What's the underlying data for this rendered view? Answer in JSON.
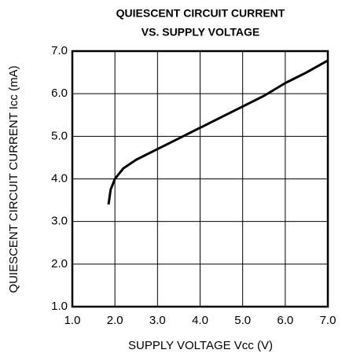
{
  "chart_data": {
    "type": "line",
    "title": [
      "QUIESCENT CIRCUIT CURRENT",
      "VS. SUPPLY VOLTAGE"
    ],
    "xlabel": "SUPPLY VOLTAGE Vcc (V)",
    "ylabel": "QUIESCENT CIRCUIT CURRENT Icc (mA)",
    "x": [
      1.85,
      1.9,
      2.0,
      2.2,
      2.5,
      3.0,
      3.5,
      4.0,
      4.5,
      5.0,
      5.5,
      6.0,
      6.5,
      7.0
    ],
    "series": [
      {
        "color": "#000000",
        "values": [
          3.4,
          3.75,
          4.0,
          4.25,
          4.45,
          4.7,
          4.95,
          5.2,
          5.45,
          5.7,
          5.95,
          6.25,
          6.5,
          6.78
        ]
      }
    ],
    "xlim": [
      1,
      7
    ],
    "ylim": [
      1,
      7
    ],
    "xticks": [
      {
        "value": 1,
        "label": "1.0"
      },
      {
        "value": 2,
        "label": "2.0"
      },
      {
        "value": 3,
        "label": "3.0"
      },
      {
        "value": 4,
        "label": "4.0"
      },
      {
        "value": 5,
        "label": "5.0"
      },
      {
        "value": 6,
        "label": "6.0"
      },
      {
        "value": 7,
        "label": "7.0"
      }
    ],
    "yticks": [
      {
        "value": 1,
        "label": "1.0"
      },
      {
        "value": 2,
        "label": "2.0"
      },
      {
        "value": 3,
        "label": "3.0"
      },
      {
        "value": 4,
        "label": "4.0"
      },
      {
        "value": 5,
        "label": "5.0"
      },
      {
        "value": 6,
        "label": "6.0"
      },
      {
        "value": 7,
        "label": "7.0"
      }
    ],
    "grid": true
  }
}
